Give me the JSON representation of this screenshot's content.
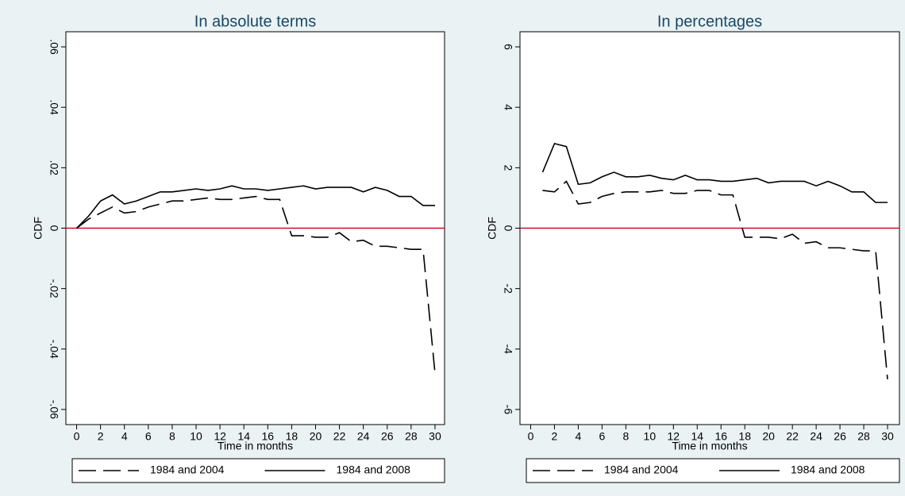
{
  "chart_data": [
    {
      "type": "line",
      "title": "In absolute terms",
      "x_label": "Time in months",
      "y_label": "CDF",
      "x": [
        0,
        1,
        2,
        3,
        4,
        5,
        6,
        7,
        8,
        9,
        10,
        11,
        12,
        13,
        14,
        15,
        16,
        17,
        18,
        19,
        20,
        21,
        22,
        23,
        24,
        25,
        26,
        27,
        28,
        29,
        30
      ],
      "series": [
        {
          "name": "1984 and 2004",
          "color": "#000000",
          "line_style": "dashed",
          "values": [
            0,
            0.003,
            0.005,
            0.007,
            0.005,
            0.0055,
            0.007,
            0.008,
            0.009,
            0.009,
            0.0095,
            0.01,
            0.0095,
            0.0095,
            0.01,
            0.0105,
            0.0095,
            0.0095,
            -0.0025,
            -0.0025,
            -0.003,
            -0.003,
            -0.0015,
            -0.0045,
            -0.004,
            -0.006,
            -0.006,
            -0.0065,
            -0.007,
            -0.007,
            -0.048
          ]
        },
        {
          "name": "1984 and 2008",
          "color": "#000000",
          "line_style": "solid",
          "values": [
            0,
            0.004,
            0.009,
            0.011,
            0.008,
            0.009,
            0.0105,
            0.012,
            0.012,
            0.0125,
            0.013,
            0.0125,
            0.013,
            0.014,
            0.013,
            0.013,
            0.0125,
            0.013,
            0.0135,
            0.014,
            0.013,
            0.0135,
            0.0135,
            0.0135,
            0.012,
            0.0135,
            0.0125,
            0.0105,
            0.0105,
            0.0075,
            0.0075
          ]
        }
      ],
      "xlim": [
        -0.9,
        30.8
      ],
      "xticks": [
        0,
        2,
        4,
        6,
        8,
        10,
        12,
        14,
        16,
        18,
        20,
        22,
        24,
        26,
        28,
        30
      ],
      "ylim": [
        -0.065,
        0.065
      ],
      "yticks": [
        {
          "value": -0.06,
          "label": "-.06"
        },
        {
          "value": -0.04,
          "label": "-.04"
        },
        {
          "value": -0.02,
          "label": "-.02"
        },
        0,
        {
          "value": 0.02,
          "label": ".02"
        },
        {
          "value": 0.04,
          "label": ".04"
        },
        {
          "value": 0.06,
          "label": ".06"
        }
      ],
      "reference_line": 0,
      "reference_color": "#c8102e",
      "legend": "bottom"
    },
    {
      "type": "line",
      "title": "In percentages",
      "x_label": "Time in months",
      "y_label": "CDF",
      "x": [
        1,
        2,
        3,
        4,
        5,
        6,
        7,
        8,
        9,
        10,
        11,
        12,
        13,
        14,
        15,
        16,
        17,
        18,
        19,
        20,
        21,
        22,
        23,
        24,
        25,
        26,
        27,
        28,
        29,
        30
      ],
      "series": [
        {
          "name": "1984 and 2004",
          "color": "#000000",
          "line_style": "dashed",
          "values": [
            1.25,
            1.2,
            1.55,
            0.8,
            0.85,
            1.05,
            1.15,
            1.2,
            1.2,
            1.2,
            1.25,
            1.15,
            1.15,
            1.25,
            1.25,
            1.1,
            1.1,
            -0.3,
            -0.3,
            -0.3,
            -0.35,
            -0.2,
            -0.5,
            -0.45,
            -0.65,
            -0.65,
            -0.7,
            -0.75,
            -0.75,
            -5.0
          ]
        },
        {
          "name": "1984 and 2008",
          "color": "#000000",
          "line_style": "solid",
          "values": [
            1.85,
            2.8,
            2.7,
            1.45,
            1.5,
            1.7,
            1.85,
            1.7,
            1.7,
            1.75,
            1.65,
            1.6,
            1.75,
            1.6,
            1.6,
            1.55,
            1.55,
            1.6,
            1.65,
            1.5,
            1.55,
            1.55,
            1.55,
            1.4,
            1.55,
            1.4,
            1.2,
            1.2,
            0.85,
            0.85
          ]
        }
      ],
      "xlim": [
        -0.9,
        31
      ],
      "xticks": [
        0,
        2,
        4,
        6,
        8,
        10,
        12,
        14,
        16,
        18,
        20,
        22,
        24,
        26,
        28,
        30
      ],
      "ylim": [
        -6.5,
        6.5
      ],
      "yticks": [
        -6,
        -4,
        -2,
        0,
        2,
        4,
        6
      ],
      "reference_line": 0,
      "reference_color": "#c8102e",
      "legend": "bottom"
    }
  ]
}
